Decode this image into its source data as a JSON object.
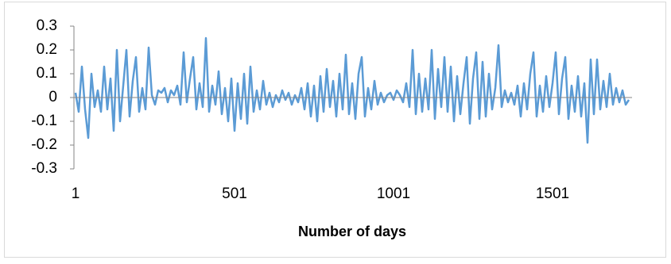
{
  "chart_data": {
    "type": "line",
    "x_label": "Number of days",
    "color": "#5b9bd5",
    "xlim": [
      1,
      1751
    ],
    "xticks": [
      1,
      501,
      1001,
      1501
    ],
    "ylim": [
      -0.3,
      0.3
    ],
    "yticks": [
      0.3,
      0.2,
      0.1,
      0,
      -0.1,
      -0.2,
      -0.3
    ],
    "x": [
      1,
      11,
      21,
      31,
      41,
      51,
      61,
      71,
      81,
      91,
      101,
      111,
      121,
      131,
      141,
      151,
      161,
      171,
      181,
      191,
      201,
      211,
      221,
      231,
      241,
      251,
      261,
      271,
      281,
      291,
      301,
      311,
      321,
      331,
      341,
      351,
      361,
      371,
      381,
      391,
      401,
      411,
      421,
      431,
      441,
      451,
      461,
      471,
      481,
      491,
      501,
      511,
      521,
      531,
      541,
      551,
      561,
      571,
      581,
      591,
      601,
      611,
      621,
      631,
      641,
      651,
      661,
      671,
      681,
      691,
      701,
      711,
      721,
      731,
      741,
      751,
      761,
      771,
      781,
      791,
      801,
      811,
      821,
      831,
      841,
      851,
      861,
      871,
      881,
      891,
      901,
      911,
      921,
      931,
      941,
      951,
      961,
      971,
      981,
      991,
      1001,
      1011,
      1021,
      1031,
      1041,
      1051,
      1061,
      1071,
      1081,
      1091,
      1101,
      1111,
      1121,
      1131,
      1141,
      1151,
      1161,
      1171,
      1181,
      1191,
      1201,
      1211,
      1221,
      1231,
      1241,
      1251,
      1261,
      1271,
      1281,
      1291,
      1301,
      1311,
      1321,
      1331,
      1341,
      1351,
      1361,
      1371,
      1381,
      1391,
      1401,
      1411,
      1421,
      1431,
      1441,
      1451,
      1461,
      1471,
      1481,
      1491,
      1501,
      1511,
      1521,
      1531,
      1541,
      1551,
      1561,
      1571,
      1581,
      1591,
      1601,
      1611,
      1621,
      1631,
      1641,
      1651,
      1661,
      1671,
      1681,
      1691,
      1701,
      1711,
      1721,
      1731,
      1741
    ],
    "values": [
      0.02,
      -0.06,
      0.13,
      -0.05,
      -0.17,
      0.1,
      -0.04,
      0.03,
      -0.06,
      0.13,
      -0.05,
      0.08,
      -0.14,
      0.2,
      -0.1,
      0.05,
      0.2,
      -0.08,
      0.07,
      0.17,
      -0.06,
      0.04,
      -0.05,
      0.21,
      0.01,
      -0.03,
      0.03,
      0.02,
      0.04,
      -0.02,
      0.03,
      0.01,
      0.05,
      -0.03,
      0.19,
      -0.02,
      0.08,
      0.17,
      -0.05,
      0.06,
      -0.04,
      0.25,
      -0.06,
      0.05,
      -0.03,
      0.11,
      -0.07,
      0.04,
      -0.1,
      0.08,
      -0.14,
      0.06,
      -0.09,
      0.1,
      -0.11,
      0.13,
      -0.06,
      0.03,
      -0.05,
      0.07,
      -0.03,
      0.02,
      -0.04,
      0.01,
      -0.02,
      0.03,
      -0.01,
      0.02,
      -0.03,
      0.01,
      -0.02,
      0.04,
      -0.05,
      0.06,
      -0.08,
      0.05,
      -0.1,
      0.09,
      -0.06,
      0.12,
      -0.04,
      0.07,
      -0.08,
      0.1,
      -0.05,
      0.18,
      -0.07,
      0.06,
      -0.09,
      0.1,
      0.17,
      -0.08,
      0.04,
      -0.05,
      0.07,
      -0.03,
      0.02,
      -0.02,
      0.01,
      0.02,
      -0.01,
      0.03,
      0.01,
      -0.02,
      0.06,
      -0.04,
      0.2,
      -0.07,
      0.1,
      -0.06,
      0.08,
      -0.05,
      0.2,
      -0.09,
      0.12,
      -0.04,
      0.17,
      -0.06,
      0.13,
      -0.1,
      0.09,
      -0.07,
      0.06,
      0.17,
      -0.11,
      0.08,
      0.19,
      -0.09,
      0.15,
      -0.08,
      0.1,
      -0.05,
      0.04,
      0.22,
      -0.04,
      0.03,
      -0.02,
      0.02,
      -0.03,
      0.05,
      -0.08,
      0.06,
      -0.05,
      0.1,
      0.19,
      -0.08,
      0.05,
      -0.06,
      0.09,
      -0.04,
      0.06,
      0.19,
      -0.07,
      0.08,
      0.17,
      -0.09,
      0.05,
      -0.06,
      0.09,
      -0.08,
      0.06,
      -0.19,
      0.16,
      -0.07,
      0.16,
      -0.05,
      0.07,
      -0.04,
      0.1,
      -0.03,
      0.04,
      -0.02,
      0.03,
      -0.03,
      -0.01
    ]
  }
}
